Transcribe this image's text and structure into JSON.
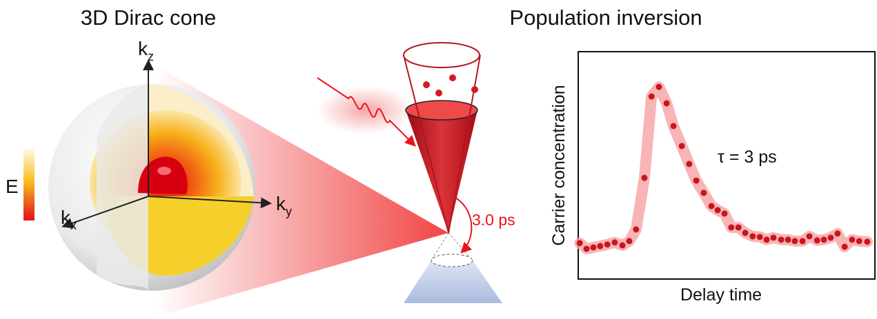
{
  "left_panel": {
    "title": "3D Dirac cone",
    "energy_label": "E",
    "axes": [
      {
        "base": "k",
        "sub": "z"
      },
      {
        "base": "k",
        "sub": "y"
      },
      {
        "base": "k",
        "sub": "x"
      }
    ]
  },
  "middle_panel": {
    "lifetime_label": "3.0 ps"
  },
  "chart_data": {
    "type": "scatter",
    "title": "Population inversion",
    "x_label": "Delay time",
    "y_label": "Carrier concentration",
    "annotation": "τ = 3 ps",
    "x": [
      0.5,
      2.8,
      5.1,
      7.4,
      9.8,
      12.3,
      14.9,
      17.2,
      19.5,
      22.3,
      24.7,
      27.2,
      29.8,
      32.1,
      34.9,
      37.4,
      39.8,
      42.3,
      44.9,
      47.0,
      49.3,
      51.6,
      54.0,
      56.3,
      58.8,
      61.2,
      63.5,
      65.8,
      68.4,
      70.7,
      73.0,
      75.6,
      77.9,
      80.5,
      82.8,
      85.1,
      87.4,
      89.8,
      92.3,
      94.7,
      97.4
    ],
    "values": [
      15.8,
      13.3,
      13.9,
      14.5,
      15.2,
      16.1,
      14.8,
      16.7,
      21.8,
      44.5,
      80.3,
      84.5,
      77.3,
      67.3,
      58.5,
      50.6,
      43.3,
      37.9,
      32.1,
      30.3,
      28.8,
      22.7,
      22.7,
      20.3,
      18.8,
      18.5,
      17.3,
      18.2,
      17.3,
      17.3,
      16.7,
      16.7,
      18.8,
      17.0,
      17.3,
      18.2,
      20.0,
      14.2,
      17.3,
      16.7,
      16.4
    ],
    "color": "#c8161d",
    "band_color": "#f5a3a3",
    "xlim": [
      0,
      100
    ],
    "ylim": [
      0,
      100
    ]
  }
}
